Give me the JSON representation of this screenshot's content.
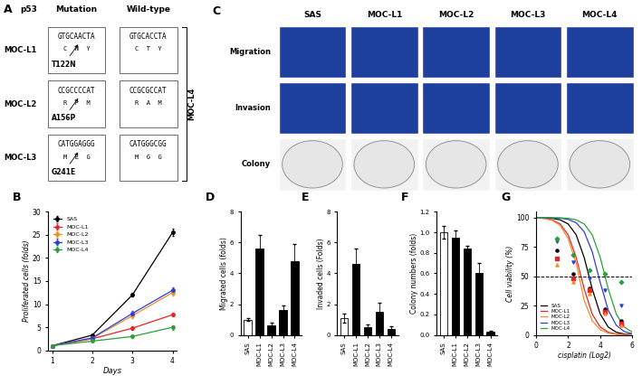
{
  "chart_data": [
    {
      "type": "line",
      "panel_label": "B",
      "x_label": "Days",
      "y_label": "Proliferated cells (folds)",
      "x": [
        1,
        2,
        3,
        4
      ],
      "xlim": [
        0.9,
        4.1
      ],
      "xticks": [
        1,
        2,
        3,
        4
      ],
      "ylim": [
        0,
        30
      ],
      "yticks": [
        0,
        5,
        10,
        15,
        20,
        25,
        30
      ],
      "legend": "upper left",
      "marker": "o",
      "series": [
        {
          "name": "SAS",
          "color": "#000000",
          "values": [
            1,
            3.3,
            12,
            25.5
          ],
          "errors": [
            0.05,
            0.2,
            0.4,
            0.8
          ]
        },
        {
          "name": "MOC-L1",
          "color": "#e8232a",
          "values": [
            1,
            2.5,
            4.8,
            7.7
          ],
          "errors": [
            0.05,
            0.15,
            0.4,
            0.4
          ]
        },
        {
          "name": "MOC-L2",
          "color": "#f28c28",
          "values": [
            1,
            2.6,
            7.5,
            12.5
          ],
          "errors": [
            0.05,
            0.15,
            0.5,
            0.6
          ]
        },
        {
          "name": "MOC-L3",
          "color": "#2b3fd6",
          "values": [
            1,
            2.7,
            8,
            13
          ],
          "errors": [
            0.05,
            0.15,
            0.6,
            0.7
          ]
        },
        {
          "name": "MOC-L4",
          "color": "#2e9e3a",
          "values": [
            1,
            2,
            3,
            5
          ],
          "errors": [
            0.05,
            0.1,
            0.3,
            0.5
          ]
        }
      ]
    },
    {
      "type": "bar",
      "panel_label": "D",
      "y_label": "Migrated cells (folds)",
      "categories": [
        "SAS",
        "MOC-L1",
        "MOC-L2",
        "MOC-L3",
        "MOC-L4"
      ],
      "values": [
        1.0,
        5.6,
        0.6,
        1.6,
        4.8
      ],
      "errors": [
        0.1,
        0.9,
        0.2,
        0.3,
        1.1
      ],
      "colors": [
        "#ffffff",
        "#000000",
        "#000000",
        "#000000",
        "#000000"
      ],
      "ylim": [
        0,
        8
      ],
      "yticks": [
        0,
        2,
        4,
        6,
        8
      ]
    },
    {
      "type": "bar",
      "panel_label": "E",
      "y_label": "Invaded cells (Folds)",
      "categories": [
        "SAS",
        "MOC-L1",
        "MOC-L2",
        "MOC-L3",
        "MOC-L4"
      ],
      "values": [
        1.1,
        4.6,
        0.5,
        1.5,
        0.4
      ],
      "errors": [
        0.3,
        1.0,
        0.2,
        0.6,
        0.15
      ],
      "colors": [
        "#ffffff",
        "#000000",
        "#000000",
        "#000000",
        "#000000"
      ],
      "ylim": [
        0,
        8
      ],
      "yticks": [
        0,
        2,
        4,
        6,
        8
      ]
    },
    {
      "type": "bar",
      "panel_label": "F",
      "y_label": "Colony numbers (folds)",
      "categories": [
        "SAS",
        "MOC-L1",
        "MOC-L2",
        "MOC-L3",
        "MOC-L4"
      ],
      "values": [
        1.0,
        0.95,
        0.84,
        0.6,
        0.03
      ],
      "errors": [
        0.06,
        0.07,
        0.03,
        0.1,
        0.01
      ],
      "colors": [
        "#ffffff",
        "#000000",
        "#000000",
        "#000000",
        "#000000"
      ],
      "ylim": [
        0,
        1.2
      ],
      "yticks": [
        {
          "value": 0,
          "label": "0.0"
        },
        {
          "value": 0.2,
          "label": "0.2"
        },
        {
          "value": 0.4,
          "label": "0.4"
        },
        {
          "value": 0.6,
          "label": "0.6"
        },
        {
          "value": 0.8,
          "label": "0.8"
        },
        {
          "value": 1.0,
          "label": "1.0"
        },
        {
          "value": 1.2,
          "label": "1.2"
        }
      ]
    },
    {
      "type": "line",
      "panel_label": "G",
      "x_label": "cisplatin (Log2)",
      "y_label": "Cell viability (%)",
      "x": [
        0,
        0.5,
        1,
        1.5,
        2,
        2.5,
        3,
        3.5,
        4,
        4.5,
        5,
        5.5,
        6
      ],
      "points_x": [
        1.3,
        2.3,
        3.3,
        4.3,
        5.3
      ],
      "xlim": [
        0,
        6
      ],
      "xticks": [
        0,
        2,
        4,
        6
      ],
      "ylim": [
        0,
        105
      ],
      "yticks": [
        0,
        25,
        50,
        75,
        100
      ],
      "reference_y": 50,
      "legend": "lower left",
      "series": [
        {
          "name": "SAS",
          "color": "#000000",
          "marker": "o",
          "values": [
            99.9,
            99.8,
            99.4,
            98.1,
            94.6,
            85.3,
            65.9,
            39.2,
            17.7,
            6.7,
            2.3,
            0.8,
            0.3
          ],
          "points": [
            72,
            52,
            40,
            22,
            12
          ]
        },
        {
          "name": "MOC-L1",
          "color": "#e8232a",
          "marker": "s",
          "values": [
            99.8,
            99.4,
            98.1,
            94.6,
            85.3,
            65.9,
            39.2,
            17.7,
            6.7,
            2.3,
            0.8,
            0.3,
            0.1
          ],
          "points": [
            65,
            48,
            38,
            20,
            10
          ]
        },
        {
          "name": "MOC-L2",
          "color": "#f28c28",
          "marker": "^",
          "values": [
            99.8,
            99.2,
            97.7,
            93.4,
            82,
            60.9,
            29.4,
            12.1,
            4.4,
            1.5,
            0.5,
            0.2,
            0.1
          ],
          "points": [
            60,
            45,
            35,
            18,
            8
          ]
        },
        {
          "name": "MOC-L3",
          "color": "#2b3fd6",
          "marker": "v",
          "values": [
            100,
            99.9,
            99.8,
            99.5,
            98.5,
            95.6,
            87.9,
            70.8,
            44.5,
            21,
            8.2,
            2.9,
            1.0
          ],
          "points": [
            80,
            62,
            48,
            38,
            25
          ]
        },
        {
          "name": "MOC-L4",
          "color": "#2e9e3a",
          "marker": "D",
          "values": [
            100,
            100,
            99.9,
            99.8,
            99.4,
            98.1,
            94.6,
            85.3,
            65.9,
            39.2,
            17.7,
            6.7,
            2.3
          ],
          "points": [
            82,
            68,
            55,
            52,
            45
          ]
        }
      ]
    }
  ],
  "panel_A": {
    "label": "A",
    "header": "p53",
    "columns": [
      "Mutation",
      "Wild-type"
    ],
    "bracket_label": "MOC-L4",
    "rows": [
      {
        "name": "MOC-L1",
        "mutation": "T122N",
        "mut_seq": "GTGCAACTA",
        "mut_aa": "C  N  Y",
        "wt_seq": "GTGCACCTA",
        "wt_aa": "C  T  Y"
      },
      {
        "name": "MOC-L2",
        "mutation": "A156P",
        "mut_seq": "CCGCCCCAT",
        "mut_aa": "R  P  M",
        "wt_seq": "CCGCGCCAT",
        "wt_aa": "R  A  M"
      },
      {
        "name": "MOC-L3",
        "mutation": "G241E",
        "mut_seq": "CATGGAGGG",
        "mut_aa": "M  E  G",
        "wt_seq": "CATGGGCGG",
        "wt_aa": "M  G  G"
      }
    ]
  },
  "panel_C": {
    "label": "C",
    "columns": [
      "SAS",
      "MOC-L1",
      "MOC-L2",
      "MOC-L3",
      "MOC-L4"
    ],
    "rows": [
      "Migration",
      "Invasion",
      "Colony"
    ]
  }
}
